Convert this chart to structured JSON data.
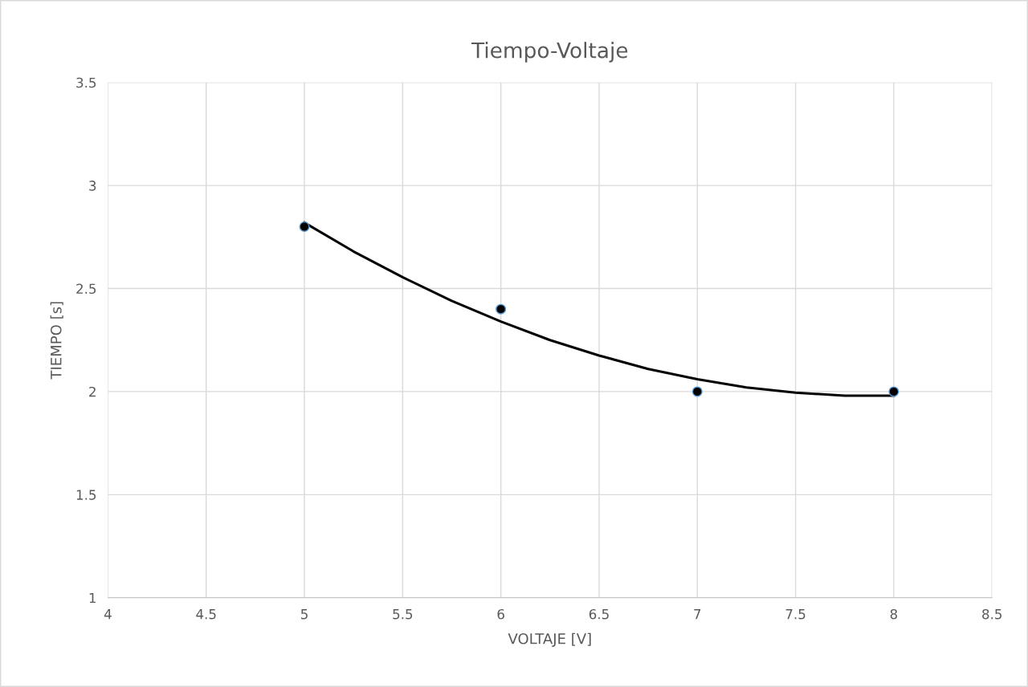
{
  "chart_data": {
    "type": "scatter",
    "title": "Tiempo-Voltaje",
    "xlabel": "VOLTAJE [V]",
    "ylabel": "TIEMPO [s]",
    "x": [
      5,
      6,
      7,
      8
    ],
    "series": [
      {
        "color": "#000000",
        "marker": "circle",
        "values": [
          2.8,
          2.4,
          2.0,
          2.0
        ]
      },
      {
        "type": "line",
        "color": "#000000",
        "x": [
          5,
          5.25,
          5.5,
          5.75,
          6,
          6.25,
          6.5,
          6.75,
          7,
          7.25,
          7.5,
          7.75,
          8
        ],
        "values": [
          2.82,
          2.68,
          2.555,
          2.44,
          2.34,
          2.25,
          2.175,
          2.11,
          2.06,
          2.02,
          1.995,
          1.98,
          1.98
        ]
      }
    ],
    "xlim": [
      4,
      8.5
    ],
    "xticks": [
      4,
      4.5,
      5,
      5.5,
      6,
      6.5,
      7,
      7.5,
      8,
      8.5
    ],
    "ylim": [
      1,
      3.5
    ],
    "yticks": [
      1,
      1.5,
      2,
      2.5,
      3,
      3.5
    ],
    "grid": true
  }
}
